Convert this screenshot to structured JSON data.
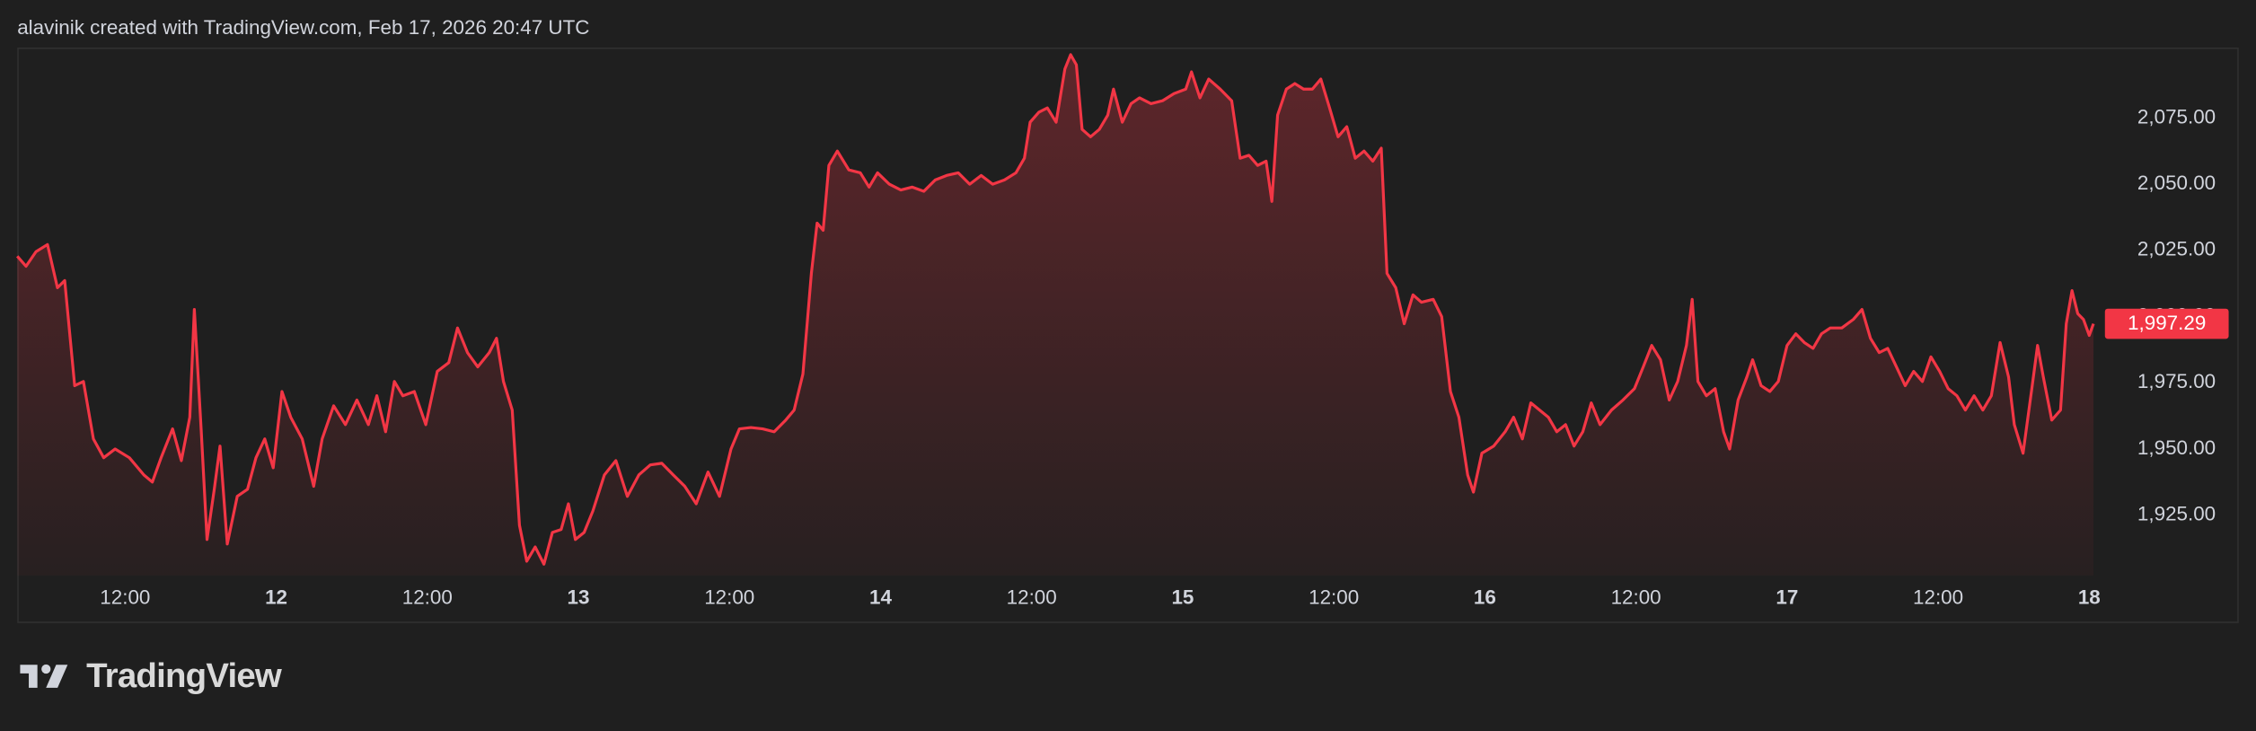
{
  "header": "alavinik created with TradingView.com, Feb 17, 2026 20:47 UTC",
  "brand": "TradingView",
  "chart_data": {
    "type": "area",
    "color": "#f23645",
    "last_value_label": "1,997.29",
    "xlim": [
      11.143,
      18.49
    ],
    "ylim": [
      1902.2,
      2101.6
    ],
    "xticks": [
      {
        "value": 11.5,
        "label": "12:00"
      },
      12,
      {
        "value": 12.5,
        "label": "12:00"
      },
      13,
      {
        "value": 13.5,
        "label": "12:00"
      },
      14,
      {
        "value": 14.5,
        "label": "12:00"
      },
      15,
      {
        "value": 15.5,
        "label": "12:00"
      },
      16,
      {
        "value": 16.5,
        "label": "12:00"
      },
      17,
      {
        "value": 17.5,
        "label": "12:00"
      },
      18
    ],
    "yticks": [
      {
        "value": 1925,
        "label": "1,925.00"
      },
      {
        "value": 1950,
        "label": "1,950.00"
      },
      {
        "value": 1975,
        "label": "1,975.00"
      },
      {
        "value": 2000,
        "label": "2,000.00"
      },
      {
        "value": 2025,
        "label": "2,025.00"
      },
      {
        "value": 2050,
        "label": "2,050.00"
      },
      {
        "value": 2075,
        "label": "2,075.00"
      }
    ],
    "x": [
      11.143,
      11.172,
      11.205,
      11.243,
      11.276,
      11.3,
      11.333,
      11.362,
      11.395,
      11.429,
      11.467,
      11.514,
      11.562,
      11.59,
      11.619,
      11.657,
      11.686,
      11.714,
      11.729,
      11.752,
      11.771,
      11.795,
      11.814,
      11.838,
      11.871,
      11.905,
      11.933,
      11.962,
      11.99,
      12.019,
      12.048,
      12.086,
      12.124,
      12.152,
      12.19,
      12.229,
      12.267,
      12.305,
      12.333,
      12.362,
      12.391,
      12.419,
      12.457,
      12.495,
      12.533,
      12.571,
      12.6,
      12.633,
      12.667,
      12.705,
      12.729,
      12.752,
      12.781,
      12.805,
      12.829,
      12.857,
      12.886,
      12.914,
      12.943,
      12.967,
      12.99,
      13.019,
      13.048,
      13.086,
      13.124,
      13.162,
      13.2,
      13.238,
      13.276,
      13.314,
      13.352,
      13.39,
      13.429,
      13.467,
      13.505,
      13.533,
      13.571,
      13.61,
      13.648,
      13.686,
      13.714,
      13.743,
      13.771,
      13.79,
      13.81,
      13.829,
      13.857,
      13.895,
      13.933,
      13.962,
      13.99,
      14.029,
      14.067,
      14.105,
      14.143,
      14.181,
      14.219,
      14.257,
      14.295,
      14.333,
      14.371,
      14.41,
      14.448,
      14.476,
      14.495,
      14.524,
      14.552,
      14.581,
      14.61,
      14.629,
      14.648,
      14.667,
      14.695,
      14.724,
      14.752,
      14.771,
      14.8,
      14.829,
      14.857,
      14.895,
      14.933,
      14.971,
      15.01,
      15.029,
      15.057,
      15.086,
      15.124,
      15.162,
      15.19,
      15.219,
      15.248,
      15.276,
      15.295,
      15.314,
      15.343,
      15.371,
      15.4,
      15.429,
      15.457,
      15.486,
      15.514,
      15.543,
      15.571,
      15.6,
      15.629,
      15.657,
      15.676,
      15.705,
      15.733,
      15.762,
      15.79,
      15.829,
      15.857,
      15.886,
      15.914,
      15.943,
      15.962,
      15.99,
      16.029,
      16.067,
      16.095,
      16.124,
      16.152,
      16.181,
      16.21,
      16.238,
      16.267,
      16.295,
      16.324,
      16.352,
      16.381,
      16.419,
      16.457,
      16.495,
      16.524,
      16.552,
      16.581,
      16.61,
      16.638,
      16.667,
      16.686,
      16.705,
      16.733,
      16.762,
      16.79,
      16.81,
      16.838,
      16.867,
      16.886,
      16.914,
      16.943,
      16.971,
      17.0,
      17.029,
      17.057,
      17.086,
      17.114,
      17.143,
      17.181,
      17.219,
      17.248,
      17.276,
      17.305,
      17.333,
      17.362,
      17.391,
      17.419,
      17.448,
      17.476,
      17.505,
      17.533,
      17.562,
      17.59,
      17.619,
      17.648,
      17.676,
      17.705,
      17.733,
      17.752,
      17.781,
      17.81,
      17.829,
      17.848,
      17.876,
      17.905,
      17.924,
      17.943,
      17.962,
      17.981,
      18.0,
      18.014
    ],
    "values": [
      2022.8,
      2019.0,
      2024.5,
      2027.2,
      2010.9,
      2013.6,
      1973.9,
      1975.5,
      1953.8,
      1946.7,
      1950.0,
      1946.7,
      1940.2,
      1937.5,
      1946.7,
      1957.6,
      1945.6,
      1962.0,
      2002.7,
      1956.5,
      1915.8,
      1934.8,
      1951.1,
      1914.1,
      1932.1,
      1934.8,
      1946.7,
      1953.8,
      1942.9,
      1971.7,
      1962.0,
      1953.8,
      1935.9,
      1953.8,
      1966.3,
      1959.2,
      1968.5,
      1959.2,
      1970.1,
      1956.5,
      1975.5,
      1970.1,
      1971.7,
      1959.2,
      1979.3,
      1982.6,
      1995.7,
      1986.4,
      1981.0,
      1986.4,
      1991.8,
      1975.5,
      1964.7,
      1921.2,
      1907.6,
      1913.0,
      1906.5,
      1918.5,
      1919.6,
      1929.3,
      1915.8,
      1918.5,
      1926.6,
      1940.2,
      1945.6,
      1932.1,
      1940.2,
      1944.0,
      1944.6,
      1940.2,
      1935.9,
      1929.3,
      1941.3,
      1932.1,
      1950.0,
      1957.6,
      1958.1,
      1957.6,
      1956.5,
      1960.9,
      1964.7,
      1978.3,
      2016.3,
      2035.3,
      2032.6,
      2057.1,
      2062.5,
      2055.4,
      2054.3,
      2048.9,
      2054.3,
      2050.0,
      2047.8,
      2048.9,
      2047.3,
      2051.6,
      2053.3,
      2054.3,
      2050.0,
      2053.3,
      2050.0,
      2051.6,
      2054.3,
      2059.8,
      2073.4,
      2077.2,
      2078.8,
      2073.4,
      2093.5,
      2098.9,
      2095.1,
      2070.7,
      2067.9,
      2070.7,
      2076.1,
      2085.9,
      2073.4,
      2080.4,
      2082.6,
      2080.4,
      2081.5,
      2084.2,
      2085.9,
      2092.4,
      2082.6,
      2089.7,
      2085.9,
      2081.5,
      2059.8,
      2060.9,
      2057.1,
      2058.7,
      2043.5,
      2076.1,
      2085.9,
      2088.0,
      2085.9,
      2085.9,
      2089.7,
      2078.8,
      2067.9,
      2071.7,
      2059.8,
      2062.5,
      2058.7,
      2063.6,
      2016.3,
      2010.9,
      1997.3,
      2008.2,
      2005.4,
      2006.5,
      2000.0,
      1971.7,
      1962.0,
      1940.2,
      1933.7,
      1948.4,
      1951.1,
      1956.5,
      1962.0,
      1953.8,
      1967.4,
      1964.7,
      1962.0,
      1956.5,
      1959.2,
      1951.1,
      1956.5,
      1967.4,
      1959.2,
      1964.7,
      1968.5,
      1972.8,
      1981.0,
      1989.1,
      1983.7,
      1968.5,
      1975.5,
      1989.1,
      2006.5,
      1975.5,
      1970.1,
      1972.8,
      1956.5,
      1950.0,
      1968.5,
      1977.2,
      1983.7,
      1973.9,
      1971.7,
      1975.5,
      1989.1,
      1993.5,
      1990.2,
      1988.0,
      1993.5,
      1995.7,
      1995.7,
      1998.9,
      2002.7,
      1991.8,
      1986.4,
      1988.0,
      1981.0,
      1973.9,
      1979.3,
      1975.5,
      1984.8,
      1979.3,
      1972.8,
      1970.1,
      1964.7,
      1970.1,
      1964.7,
      1970.1,
      1990.2,
      1977.2,
      1959.2,
      1948.4,
      1972.8,
      1989.1,
      1977.2,
      1960.9,
      1964.7,
      1997.3,
      2009.8,
      2001.1,
      1998.9,
      1992.9,
      1997.29
    ]
  }
}
